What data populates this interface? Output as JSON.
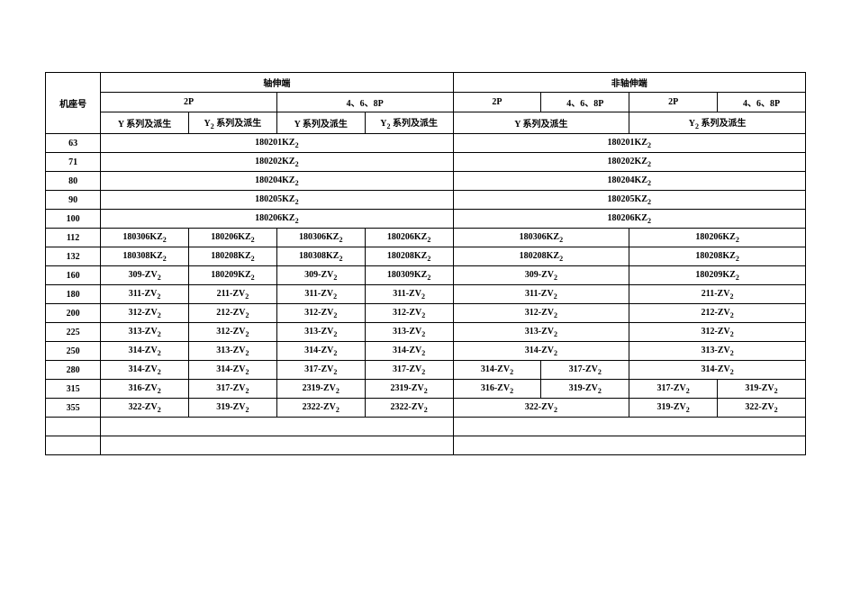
{
  "rowHeader": "机座号",
  "topHeaders": [
    "轴伸端",
    "非轴伸端"
  ],
  "sub2P": "2P",
  "sub468P": "4、6、8P",
  "seriesY": "Y 系列及派生",
  "seriesY2": "Y₂ 系列及派生",
  "specRows": [
    {
      "frame": "63",
      "cells": [
        {
          "span": 4,
          "v": "180201KZ₂"
        },
        {
          "span": 4,
          "v": "180201KZ₂"
        }
      ]
    },
    {
      "frame": "71",
      "cells": [
        {
          "span": 4,
          "v": "180202KZ₂"
        },
        {
          "span": 4,
          "v": "180202KZ₂"
        }
      ]
    },
    {
      "frame": "80",
      "cells": [
        {
          "span": 4,
          "v": "180204KZ₂"
        },
        {
          "span": 4,
          "v": "180204KZ₂"
        }
      ]
    },
    {
      "frame": "90",
      "cells": [
        {
          "span": 4,
          "v": "180205KZ₂"
        },
        {
          "span": 4,
          "v": "180205KZ₂"
        }
      ]
    },
    {
      "frame": "100",
      "cells": [
        {
          "span": 4,
          "v": "180206KZ₂"
        },
        {
          "span": 4,
          "v": "180206KZ₂"
        }
      ]
    },
    {
      "frame": "112",
      "cells": [
        {
          "span": 1,
          "v": "180306KZ₂"
        },
        {
          "span": 1,
          "v": "180206KZ₂"
        },
        {
          "span": 1,
          "v": "180306KZ₂"
        },
        {
          "span": 1,
          "v": "180206KZ₂"
        },
        {
          "span": 2,
          "v": "180306KZ₂"
        },
        {
          "span": 2,
          "v": "180206KZ₂"
        }
      ]
    },
    {
      "frame": "132",
      "cells": [
        {
          "span": 1,
          "v": "180308KZ₂"
        },
        {
          "span": 1,
          "v": "180208KZ₂"
        },
        {
          "span": 1,
          "v": "180308KZ₂"
        },
        {
          "span": 1,
          "v": "180208KZ₂"
        },
        {
          "span": 2,
          "v": "180208KZ₂"
        },
        {
          "span": 2,
          "v": "180208KZ₂"
        }
      ]
    },
    {
      "frame": "160",
      "cells": [
        {
          "span": 1,
          "v": "309-ZV₂"
        },
        {
          "span": 1,
          "v": "180209KZ₂"
        },
        {
          "span": 1,
          "v": "309-ZV₂"
        },
        {
          "span": 1,
          "v": "180309KZ₂"
        },
        {
          "span": 2,
          "v": "309-ZV₂"
        },
        {
          "span": 2,
          "v": "180209KZ₂"
        }
      ]
    },
    {
      "frame": "180",
      "cells": [
        {
          "span": 1,
          "v": "311-ZV₂"
        },
        {
          "span": 1,
          "v": "211-ZV₂"
        },
        {
          "span": 1,
          "v": "311-ZV₂"
        },
        {
          "span": 1,
          "v": "311-ZV₂"
        },
        {
          "span": 2,
          "v": "311-ZV₂"
        },
        {
          "span": 2,
          "v": "211-ZV₂"
        }
      ]
    },
    {
      "frame": "200",
      "cells": [
        {
          "span": 1,
          "v": "312-ZV₂"
        },
        {
          "span": 1,
          "v": "212-ZV₂"
        },
        {
          "span": 1,
          "v": "312-ZV₂"
        },
        {
          "span": 1,
          "v": "312-ZV₂"
        },
        {
          "span": 2,
          "v": "312-ZV₂"
        },
        {
          "span": 2,
          "v": "212-ZV₂"
        }
      ]
    },
    {
      "frame": "225",
      "cells": [
        {
          "span": 1,
          "v": "313-ZV₂"
        },
        {
          "span": 1,
          "v": "312-ZV₂"
        },
        {
          "span": 1,
          "v": "313-ZV₂"
        },
        {
          "span": 1,
          "v": "313-ZV₂"
        },
        {
          "span": 2,
          "v": "313-ZV₂"
        },
        {
          "span": 2,
          "v": "312-ZV₂"
        }
      ]
    },
    {
      "frame": "250",
      "cells": [
        {
          "span": 1,
          "v": "314-ZV₂"
        },
        {
          "span": 1,
          "v": "313-ZV₂"
        },
        {
          "span": 1,
          "v": "314-ZV₂"
        },
        {
          "span": 1,
          "v": "314-ZV₂"
        },
        {
          "span": 2,
          "v": "314-ZV₂"
        },
        {
          "span": 2,
          "v": "313-ZV₂"
        }
      ]
    },
    {
      "frame": "280",
      "cells": [
        {
          "span": 1,
          "v": "314-ZV₂"
        },
        {
          "span": 1,
          "v": "314-ZV₂"
        },
        {
          "span": 1,
          "v": "317-ZV₂"
        },
        {
          "span": 1,
          "v": "317-ZV₂"
        },
        {
          "span": 1,
          "v": "314-ZV₂"
        },
        {
          "span": 1,
          "v": "317-ZV₂"
        },
        {
          "span": 2,
          "v": "314-ZV₂"
        }
      ]
    },
    {
      "frame": "315",
      "cells": [
        {
          "span": 1,
          "v": "316-ZV₂"
        },
        {
          "span": 1,
          "v": "317-ZV₂"
        },
        {
          "span": 1,
          "v": "2319-ZV₂"
        },
        {
          "span": 1,
          "v": "2319-ZV₂"
        },
        {
          "span": 1,
          "v": "316-ZV₂"
        },
        {
          "span": 1,
          "v": "319-ZV₂"
        },
        {
          "span": 1,
          "v": "317-ZV₂"
        },
        {
          "span": 1,
          "v": "319-ZV₂"
        }
      ]
    },
    {
      "frame": "355",
      "cells": [
        {
          "span": 1,
          "v": "322-ZV₂"
        },
        {
          "span": 1,
          "v": "319-ZV₂"
        },
        {
          "span": 1,
          "v": "2322-ZV₂"
        },
        {
          "span": 1,
          "v": "2322-ZV₂"
        },
        {
          "span": 2,
          "v": "322-ZV₂"
        },
        {
          "span": 1,
          "v": "319-ZV₂"
        },
        {
          "span": 1,
          "v": "322-ZV₂"
        }
      ]
    }
  ],
  "blankRows": 2
}
